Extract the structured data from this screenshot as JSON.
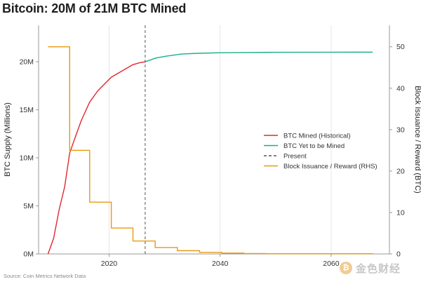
{
  "title": "Bitcoin: 20M of 21M BTC Mined",
  "source": "Source: Coin Metrics Network Data",
  "watermark": {
    "text": "金色财经",
    "logo_glyph": "₿"
  },
  "colors": {
    "mined": "#e0282f",
    "yet_to_mine": "#1aae8a",
    "present": "#555555",
    "reward": "#e89a12",
    "grid": "#e6e6e6",
    "axis": "#999999"
  },
  "chart_data": {
    "type": "line",
    "title": "Bitcoin: 20M of 21M BTC Mined",
    "xlabel": "",
    "ylabel": "BTC Supply (Millions)",
    "y2label": "Block Issuance / Reward (BTC)",
    "xlim": [
      2007.3,
      2070.5
    ],
    "ylim": [
      0,
      23.8
    ],
    "y2lim": [
      0,
      55.2
    ],
    "xticks": [
      2020,
      2040,
      2060
    ],
    "yticks": [
      0,
      5,
      10,
      15,
      20
    ],
    "ytick_labels": [
      "0M",
      "5M",
      "10M",
      "15M",
      "20M"
    ],
    "y2ticks": [
      0,
      10,
      20,
      30,
      40,
      50
    ],
    "present_year": 2026.5,
    "legend_position": "center-right",
    "series": [
      {
        "name": "BTC Mined (Historical)",
        "style": "solid",
        "color": "#e0282f",
        "axis": "left",
        "x": [
          2009.0,
          2009.5,
          2010.0,
          2011.0,
          2012.0,
          2012.9,
          2014.0,
          2015.0,
          2016.5,
          2018.0,
          2020.4,
          2022.5,
          2024.3,
          2025.5,
          2026.5
        ],
        "y": [
          0,
          0.8,
          1.6,
          4.6,
          7.0,
          10.5,
          12.3,
          13.9,
          15.8,
          17.0,
          18.4,
          19.1,
          19.7,
          19.9,
          20.0
        ]
      },
      {
        "name": "BTC Yet to be Mined",
        "style": "solid",
        "color": "#1aae8a",
        "axis": "left",
        "x": [
          2026.5,
          2028.5,
          2030.5,
          2033,
          2036,
          2040,
          2045,
          2050,
          2060,
          2067.5
        ],
        "y": [
          20.0,
          20.4,
          20.6,
          20.8,
          20.88,
          20.94,
          20.97,
          20.985,
          20.995,
          21.0
        ]
      },
      {
        "name": "Present",
        "style": "dashed",
        "color": "#555555",
        "axis": "left",
        "x": [
          2026.5,
          2026.5
        ],
        "y": [
          0,
          23.8
        ]
      },
      {
        "name": "Block Issuance / Reward (RHS)",
        "style": "step",
        "color": "#e89a12",
        "axis": "right",
        "x": [
          2009.0,
          2012.9,
          2016.5,
          2020.4,
          2024.3,
          2028.3,
          2032.3,
          2036.3,
          2040.3,
          2044.3,
          2048.3,
          2067.5
        ],
        "y": [
          50,
          25,
          12.5,
          6.25,
          3.125,
          1.5625,
          0.78125,
          0.390625,
          0.1953125,
          0.09765625,
          0.048828125,
          0.0
        ]
      }
    ]
  }
}
